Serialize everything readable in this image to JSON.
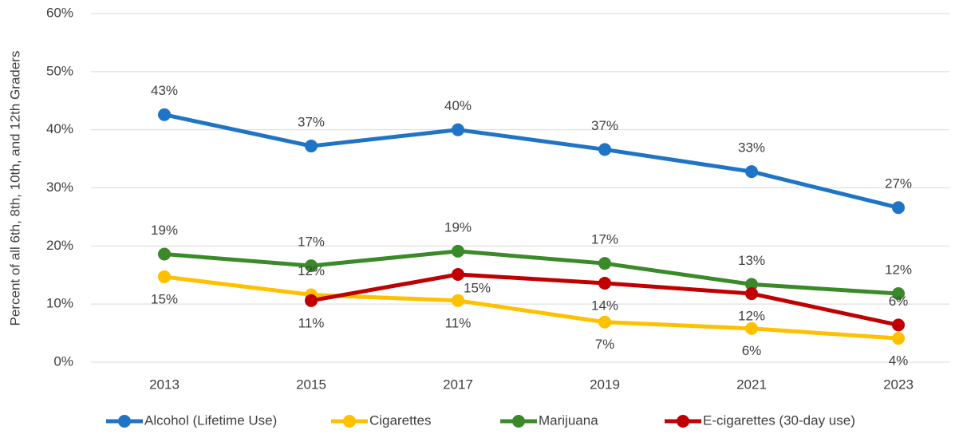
{
  "chart_data": {
    "type": "line",
    "y_label": "Percent of all 6th, 8th, 10th, and 12th Graders",
    "categories": [
      "2013",
      "2015",
      "2017",
      "2019",
      "2021",
      "2023"
    ],
    "series": [
      {
        "name": "Alcohol (Lifetime Use)",
        "color": "#1f74c6",
        "values": [
          42.6,
          37.2,
          40.0,
          36.6,
          32.8,
          26.6
        ],
        "value_labels": [
          "43%",
          "37%",
          "40%",
          "37%",
          "33%",
          "27%"
        ]
      },
      {
        "name": "Cigarettes",
        "color": "#ffc000",
        "values": [
          14.7,
          11.6,
          10.6,
          6.9,
          5.8,
          4.1
        ],
        "value_labels": [
          "15%",
          "12%",
          "11%",
          "7%",
          "6%",
          "4%"
        ]
      },
      {
        "name": "Marijuana",
        "color": "#3b8a2a",
        "values": [
          18.6,
          16.6,
          19.1,
          17.0,
          13.4,
          11.8
        ],
        "value_labels": [
          "19%",
          "17%",
          "19%",
          "17%",
          "13%",
          "12%"
        ]
      },
      {
        "name": "E-cigarettes (30-day use)",
        "color": "#c00000",
        "values": [
          null,
          10.6,
          15.1,
          13.6,
          11.8,
          6.4
        ],
        "value_labels": [
          null,
          "11%",
          "15%",
          "14%",
          "12%",
          "6%"
        ]
      }
    ],
    "ylim": [
      0,
      60
    ],
    "yticks": [
      {
        "value": 0,
        "label": "0%"
      },
      {
        "value": 10,
        "label": "10%"
      },
      {
        "value": 20,
        "label": "20%"
      },
      {
        "value": 30,
        "label": "30%"
      },
      {
        "value": 40,
        "label": "40%"
      },
      {
        "value": 50,
        "label": "50%"
      },
      {
        "value": 60,
        "label": "60%"
      }
    ],
    "grid": true,
    "legend": "bottom"
  }
}
